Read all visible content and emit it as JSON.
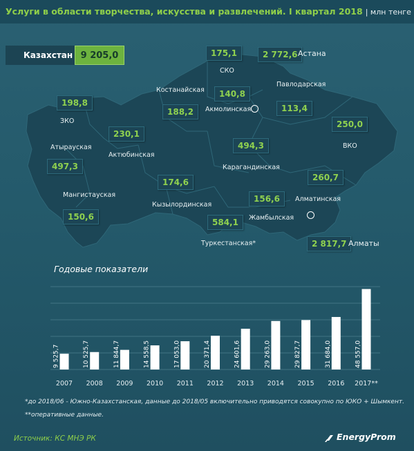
{
  "header": {
    "title": "Услуги в области творчества, искусства и развлечений. I квартал 2018",
    "unit": "| млн тенге |"
  },
  "country": {
    "label": "Казахстан",
    "value": "9 205,0"
  },
  "regions": [
    {
      "name": "ЗКО",
      "value": "198,8"
    },
    {
      "name": "Атырауская",
      "value": "497,3"
    },
    {
      "name": "Мангистауская",
      "value": "150,6"
    },
    {
      "name": "Актюбинская",
      "value": "230,1"
    },
    {
      "name": "Костанайская",
      "value": "188,2"
    },
    {
      "name": "СКО",
      "value": "175,1"
    },
    {
      "name": "Астана",
      "value": "2 772,6"
    },
    {
      "name": "Акмолинская",
      "value": "140,8"
    },
    {
      "name": "Павлодарская",
      "value": "113,4"
    },
    {
      "name": "ВКО",
      "value": "250,0"
    },
    {
      "name": "Карагандинская",
      "value": "494,3"
    },
    {
      "name": "Кызылординская",
      "value": "174,6"
    },
    {
      "name": "Туркестанская*",
      "value": "584,1"
    },
    {
      "name": "Жамбылская",
      "value": "156,6"
    },
    {
      "name": "Алматинская",
      "value": "260,7"
    },
    {
      "name": "Алматы",
      "value": "2 817,7"
    }
  ],
  "chart_title": "Годовые показатели",
  "chart_data": {
    "type": "bar",
    "categories": [
      "2007",
      "2008",
      "2009",
      "2010",
      "2011",
      "2012",
      "2013",
      "2014",
      "2015",
      "2016",
      "2017**"
    ],
    "values": [
      9525.7,
      10525.7,
      11844.7,
      14558.5,
      17053.0,
      20371.4,
      24601.6,
      29263.0,
      29827.7,
      31684.0,
      48557.0
    ],
    "value_labels": [
      "9 525,7",
      "10 525,7",
      "11 844,7",
      "14 558,5",
      "17 053,0",
      "20 371,4",
      "24 601,6",
      "29 263,0",
      "29 827,7",
      "31 684,0",
      "48 557,0"
    ],
    "title": "Годовые показатели",
    "ylim": [
      0,
      50000
    ],
    "grid": true
  },
  "footnotes": {
    "note1": "*до 2018/06 - Южно-Казахстанская, данные до 2018/05 включительно приводятся совокупно по ЮКО + Шымкент.",
    "note2": "**оперативные данные."
  },
  "source": "Источник: КС МНЭ РК",
  "brand": "EnergyProm",
  "colors": {
    "background": "#245a6b",
    "accent": "#8fcf4a",
    "map": "#1c4454",
    "bar": "#ffffff"
  }
}
